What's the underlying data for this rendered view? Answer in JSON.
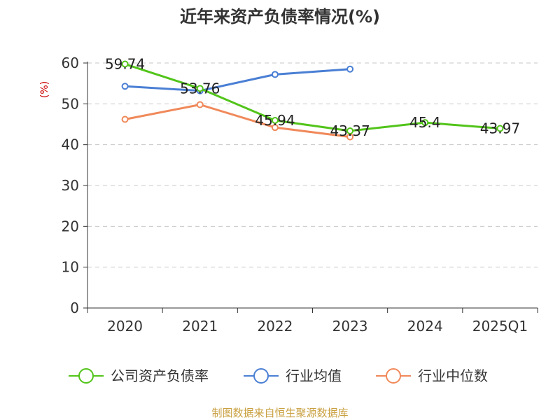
{
  "title": "近年来资产负债率情况(%)",
  "source": "制图数据来自恒生聚源数据库",
  "chart_data": {
    "type": "line",
    "categories": [
      "2020",
      "2021",
      "2022",
      "2023",
      "2024",
      "2025Q1"
    ],
    "ylim": [
      0,
      60
    ],
    "yticks": [
      0,
      10,
      20,
      30,
      40,
      50,
      60
    ],
    "ylabel": "(%)",
    "grid": true,
    "legend_position": "bottom",
    "series": [
      {
        "name": "公司资产负债率",
        "color": "#52c41a",
        "values": [
          59.74,
          53.76,
          45.94,
          43.37,
          45.4,
          43.97
        ],
        "labels": [
          "59.74",
          "53.76",
          "45.94",
          "43.37",
          "45.4",
          "43.97"
        ]
      },
      {
        "name": "行业均值",
        "color": "#4a7fd4",
        "values": [
          54.3,
          53.2,
          57.2,
          58.5,
          null,
          null
        ]
      },
      {
        "name": "行业中位数",
        "color": "#f0895a",
        "values": [
          46.2,
          49.8,
          44.2,
          41.9,
          null,
          null
        ]
      }
    ]
  }
}
